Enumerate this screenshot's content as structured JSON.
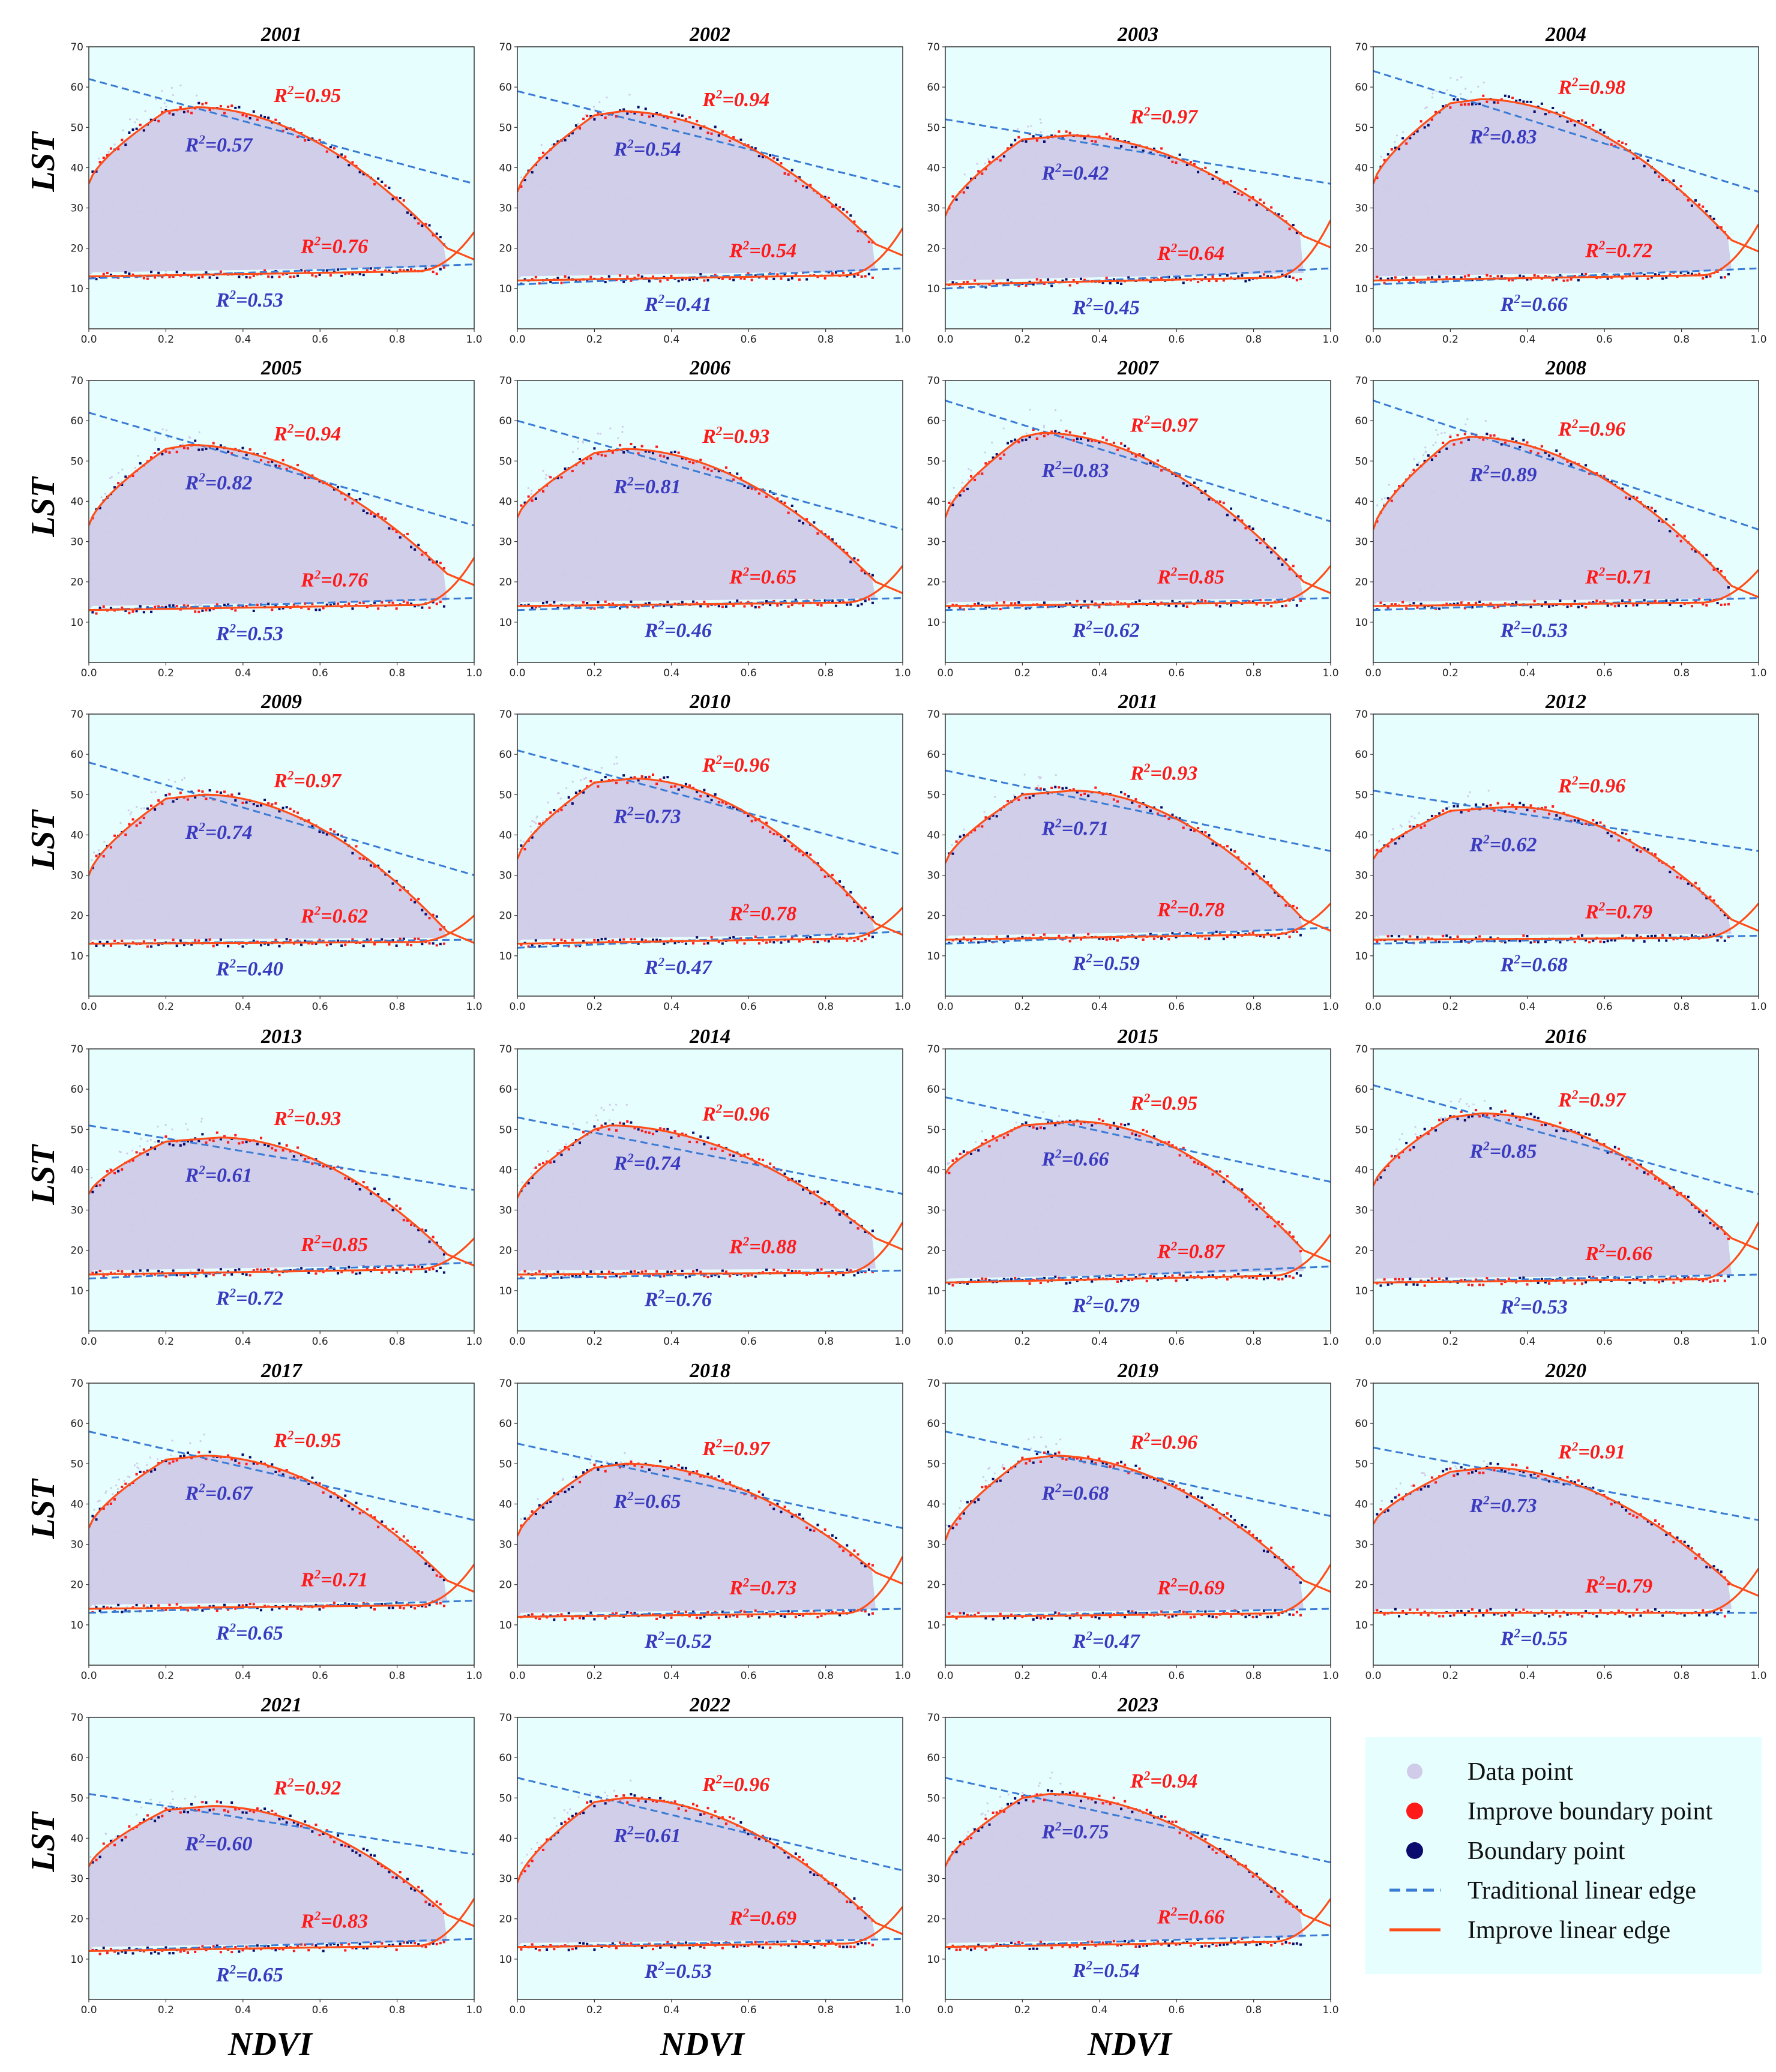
{
  "chart_data": {
    "type": "scatter",
    "xlabel": "NDVI",
    "ylabel": "LST",
    "xlim": [
      0.0,
      1.0
    ],
    "ylim": [
      0,
      70
    ],
    "x_ticks": [
      "0.0",
      "0.2",
      "0.4",
      "0.6",
      "0.8",
      "1.0"
    ],
    "y_ticks": [
      "10",
      "20",
      "30",
      "40",
      "50",
      "60",
      "70"
    ],
    "colors": {
      "plot_background": "#e6fefe",
      "data_point": "#cfcbe8",
      "improve_boundary_point": "#ff1a1a",
      "boundary_point": "#0b0b6e",
      "traditional_edge": "#3a7bd5",
      "improve_edge": "#ff4d1a",
      "improve_r2_text": "#ff1a1a",
      "traditional_r2_text": "#3a3ac0"
    },
    "legend": [
      {
        "label": "Data point",
        "kind": "data"
      },
      {
        "label": "Improve boundary point",
        "kind": "improve_point"
      },
      {
        "label": "Boundary point",
        "kind": "boundary_point"
      },
      {
        "label": "Traditional linear edge",
        "kind": "traditional_line"
      },
      {
        "label": "Improve linear edge",
        "kind": "improve_line"
      }
    ],
    "r2_prefix": "R",
    "r2_exp": "2",
    "panels": [
      {
        "year": "2001",
        "dry_imp": "=0.95",
        "dry_trad": "=0.57",
        "wet_imp": "=0.76",
        "wet_trad": "=0.53",
        "dry_line": [
          62,
          36
        ],
        "wet_line": [
          12.5,
          16
        ],
        "peak": [
          0.28,
          55
        ],
        "base": 13,
        "start": 36,
        "end": 20
      },
      {
        "year": "2002",
        "dry_imp": "=0.94",
        "dry_trad": "=0.54",
        "wet_imp": "=0.54",
        "wet_trad": "=0.41",
        "dry_line": [
          59,
          35
        ],
        "wet_line": [
          11,
          15
        ],
        "peak": [
          0.27,
          54
        ],
        "base": 12,
        "start": 34,
        "end": 21
      },
      {
        "year": "2003",
        "dry_imp": "=0.97",
        "dry_trad": "=0.42",
        "wet_imp": "=0.64",
        "wet_trad": "=0.45",
        "dry_line": [
          52,
          36
        ],
        "wet_line": [
          10,
          15
        ],
        "peak": [
          0.32,
          48
        ],
        "base": 11,
        "start": 28,
        "end": 23
      },
      {
        "year": "2004",
        "dry_imp": "=0.98",
        "dry_trad": "=0.83",
        "wet_imp": "=0.72",
        "wet_trad": "=0.66",
        "dry_line": [
          64,
          34
        ],
        "wet_line": [
          11,
          15
        ],
        "peak": [
          0.28,
          57
        ],
        "base": 12,
        "start": 36,
        "end": 22
      },
      {
        "year": "2005",
        "dry_imp": "=0.94",
        "dry_trad": "=0.82",
        "wet_imp": "=0.76",
        "wet_trad": "=0.53",
        "dry_line": [
          62,
          34
        ],
        "wet_line": [
          13,
          16
        ],
        "peak": [
          0.26,
          54
        ],
        "base": 13,
        "start": 34,
        "end": 22
      },
      {
        "year": "2006",
        "dry_imp": "=0.93",
        "dry_trad": "=0.81",
        "wet_imp": "=0.65",
        "wet_trad": "=0.46",
        "dry_line": [
          60,
          33
        ],
        "wet_line": [
          13,
          16
        ],
        "peak": [
          0.28,
          53
        ],
        "base": 14,
        "start": 36,
        "end": 20
      },
      {
        "year": "2007",
        "dry_imp": "=0.97",
        "dry_trad": "=0.83",
        "wet_imp": "=0.85",
        "wet_trad": "=0.62",
        "dry_line": [
          65,
          35
        ],
        "wet_line": [
          13,
          16
        ],
        "peak": [
          0.25,
          57
        ],
        "base": 14,
        "start": 36,
        "end": 20
      },
      {
        "year": "2008",
        "dry_imp": "=0.96",
        "dry_trad": "=0.89",
        "wet_imp": "=0.71",
        "wet_trad": "=0.53",
        "dry_line": [
          65,
          33
        ],
        "wet_line": [
          13,
          16
        ],
        "peak": [
          0.25,
          56
        ],
        "base": 14,
        "start": 33,
        "end": 19
      },
      {
        "year": "2009",
        "dry_imp": "=0.97",
        "dry_trad": "=0.74",
        "wet_imp": "=0.62",
        "wet_trad": "=0.40",
        "dry_line": [
          58,
          30
        ],
        "wet_line": [
          13,
          14
        ],
        "peak": [
          0.3,
          50
        ],
        "base": 13,
        "start": 30,
        "end": 16
      },
      {
        "year": "2010",
        "dry_imp": "=0.96",
        "dry_trad": "=0.73",
        "wet_imp": "=0.78",
        "wet_trad": "=0.47",
        "dry_line": [
          61,
          35
        ],
        "wet_line": [
          12,
          16
        ],
        "peak": [
          0.3,
          54
        ],
        "base": 13,
        "start": 34,
        "end": 18
      },
      {
        "year": "2011",
        "dry_imp": "=0.93",
        "dry_trad": "=0.71",
        "wet_imp": "=0.78",
        "wet_trad": "=0.59",
        "dry_line": [
          56,
          36
        ],
        "wet_line": [
          13,
          17
        ],
        "peak": [
          0.33,
          51
        ],
        "base": 14,
        "start": 33,
        "end": 19
      },
      {
        "year": "2012",
        "dry_imp": "=0.96",
        "dry_trad": "=0.62",
        "wet_imp": "=0.79",
        "wet_trad": "=0.68",
        "dry_line": [
          51,
          36
        ],
        "wet_line": [
          13,
          15
        ],
        "peak": [
          0.36,
          47
        ],
        "base": 14,
        "start": 34,
        "end": 19
      },
      {
        "year": "2013",
        "dry_imp": "=0.93",
        "dry_trad": "=0.61",
        "wet_imp": "=0.85",
        "wet_trad": "=0.72",
        "dry_line": [
          51,
          35
        ],
        "wet_line": [
          13,
          17
        ],
        "peak": [
          0.34,
          48
        ],
        "base": 14,
        "start": 34,
        "end": 19
      },
      {
        "year": "2014",
        "dry_imp": "=0.96",
        "dry_trad": "=0.74",
        "wet_imp": "=0.88",
        "wet_trad": "=0.76",
        "dry_line": [
          53,
          34
        ],
        "wet_line": [
          13,
          15
        ],
        "peak": [
          0.24,
          51
        ],
        "base": 14,
        "start": 33,
        "end": 23
      },
      {
        "year": "2015",
        "dry_imp": "=0.95",
        "dry_trad": "=0.66",
        "wet_imp": "=0.87",
        "wet_trad": "=0.79",
        "dry_line": [
          58,
          37
        ],
        "wet_line": [
          12,
          16
        ],
        "peak": [
          0.34,
          52
        ],
        "base": 12,
        "start": 39,
        "end": 20
      },
      {
        "year": "2016",
        "dry_imp": "=0.97",
        "dry_trad": "=0.85",
        "wet_imp": "=0.66",
        "wet_trad": "=0.53",
        "dry_line": [
          61,
          34
        ],
        "wet_line": [
          12,
          14
        ],
        "peak": [
          0.28,
          54
        ],
        "base": 12,
        "start": 36,
        "end": 23
      },
      {
        "year": "2017",
        "dry_imp": "=0.95",
        "dry_trad": "=0.67",
        "wet_imp": "=0.71",
        "wet_trad": "=0.65",
        "dry_line": [
          58,
          36
        ],
        "wet_line": [
          13,
          16
        ],
        "peak": [
          0.3,
          52
        ],
        "base": 14,
        "start": 34,
        "end": 21
      },
      {
        "year": "2018",
        "dry_imp": "=0.97",
        "dry_trad": "=0.65",
        "wet_imp": "=0.73",
        "wet_trad": "=0.52",
        "dry_line": [
          55,
          34
        ],
        "wet_line": [
          12,
          14
        ],
        "peak": [
          0.28,
          50
        ],
        "base": 12,
        "start": 32,
        "end": 23
      },
      {
        "year": "2019",
        "dry_imp": "=0.96",
        "dry_trad": "=0.68",
        "wet_imp": "=0.69",
        "wet_trad": "=0.47",
        "dry_line": [
          58,
          37
        ],
        "wet_line": [
          12,
          14
        ],
        "peak": [
          0.28,
          52
        ],
        "base": 12,
        "start": 31,
        "end": 21
      },
      {
        "year": "2020",
        "dry_imp": "=0.91",
        "dry_trad": "=0.73",
        "wet_imp": "=0.79",
        "wet_trad": "=0.55",
        "dry_line": [
          54,
          36
        ],
        "wet_line": [
          13,
          13
        ],
        "peak": [
          0.3,
          49
        ],
        "base": 13,
        "start": 35,
        "end": 20
      },
      {
        "year": "2021",
        "dry_imp": "=0.92",
        "dry_trad": "=0.60",
        "wet_imp": "=0.83",
        "wet_trad": "=0.65",
        "dry_line": [
          51,
          36
        ],
        "wet_line": [
          12,
          15
        ],
        "peak": [
          0.32,
          48
        ],
        "base": 12,
        "start": 33,
        "end": 21
      },
      {
        "year": "2022",
        "dry_imp": "=0.96",
        "dry_trad": "=0.61",
        "wet_imp": "=0.69",
        "wet_trad": "=0.53",
        "dry_line": [
          55,
          32
        ],
        "wet_line": [
          13,
          15
        ],
        "peak": [
          0.28,
          50
        ],
        "base": 13,
        "start": 29,
        "end": 19
      },
      {
        "year": "2023",
        "dry_imp": "=0.94",
        "dry_trad": "=0.75",
        "wet_imp": "=0.66",
        "wet_trad": "=0.54",
        "dry_line": [
          55,
          34
        ],
        "wet_line": [
          13,
          16
        ],
        "peak": [
          0.27,
          51
        ],
        "base": 13,
        "start": 33,
        "end": 21
      }
    ]
  }
}
